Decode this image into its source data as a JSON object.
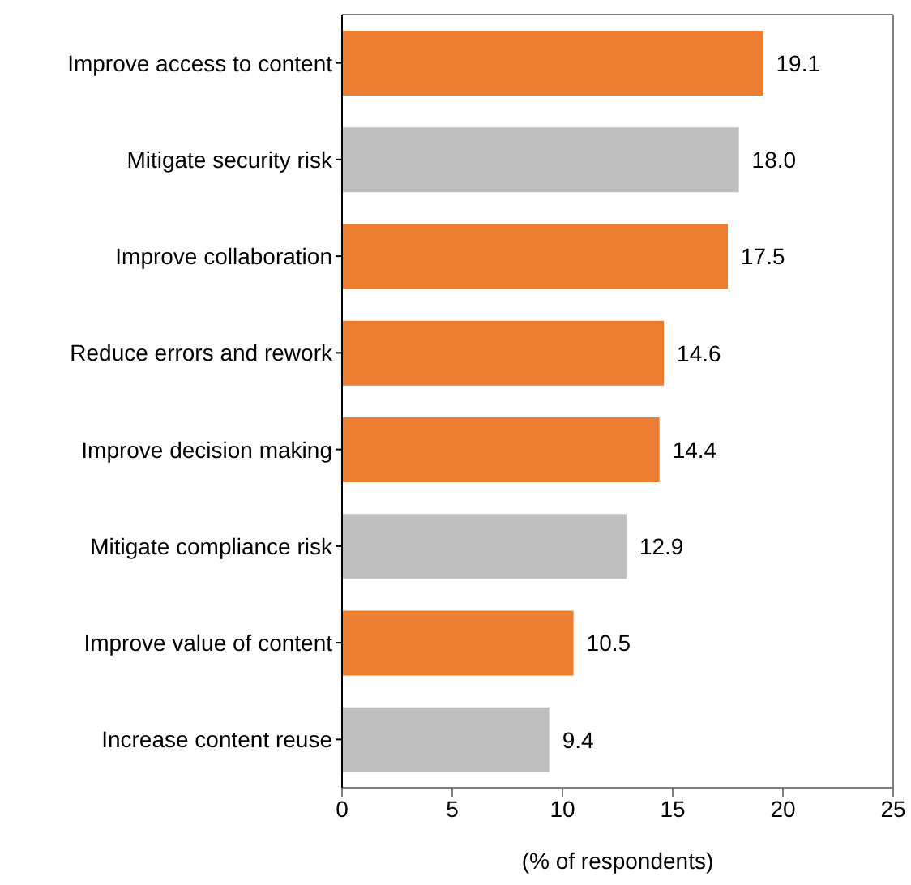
{
  "chart_data": {
    "type": "bar",
    "orientation": "horizontal",
    "categories": [
      "Improve access to content",
      "Mitigate security risk",
      "Improve collaboration",
      "Reduce errors and rework",
      "Improve decision making",
      "Mitigate compliance risk",
      "Improve value of content",
      "Increase content reuse"
    ],
    "values": [
      19.1,
      18.0,
      17.5,
      14.6,
      14.4,
      12.9,
      10.5,
      9.4
    ],
    "colors": [
      "#ed7d31",
      "#bfbfbf",
      "#ed7d31",
      "#ed7d31",
      "#ed7d31",
      "#bfbfbf",
      "#ed7d31",
      "#bfbfbf"
    ],
    "value_labels": [
      "19.1",
      "18.0",
      "17.5",
      "14.6",
      "14.4",
      "12.9",
      "10.5",
      "9.4"
    ],
    "xlabel": "(% of respondents)",
    "xlim": [
      0,
      25
    ],
    "xticks": [
      0,
      5,
      10,
      15,
      20,
      25
    ],
    "grid": false
  }
}
